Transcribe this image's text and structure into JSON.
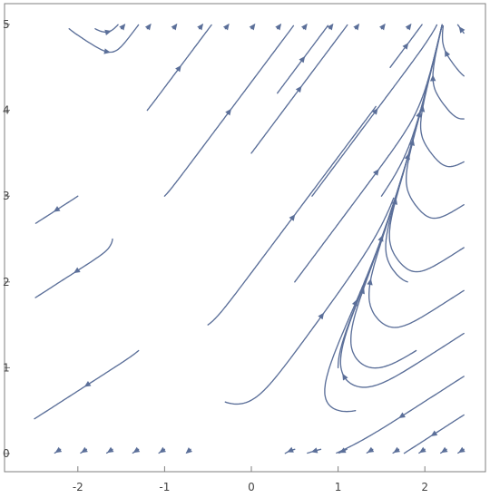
{
  "chart_data": {
    "type": "streamplot",
    "title": "",
    "xlabel": "",
    "ylabel": "",
    "xlim": [
      -2.5,
      2.5
    ],
    "ylim": [
      0,
      5
    ],
    "x_ticks": [
      "-2",
      "-1",
      "0",
      "1",
      "2"
    ],
    "y_ticks": [
      "0",
      "1",
      "2",
      "3",
      "4",
      "5"
    ],
    "x_tick_values": [
      -2,
      -1,
      0,
      1,
      2
    ],
    "y_tick_values": [
      0,
      1,
      2,
      3,
      4,
      5
    ],
    "grid": false,
    "legend": "none",
    "stream_color": "#5b6f99",
    "vector_field": {
      "dx": "tanh(2*(y - x^2))",
      "dy": "tanh(2*(y - (x - 0.5)^2 - 0.3))"
    },
    "seeds": [
      [
        -2.45,
        0.05
      ],
      [
        -2.45,
        0.45
      ],
      [
        -2.45,
        0.9
      ],
      [
        -2.45,
        1.35
      ],
      [
        -2.45,
        1.8
      ],
      [
        -2.45,
        2.3
      ],
      [
        -2.45,
        2.8
      ],
      [
        -2.45,
        3.3
      ],
      [
        -2.45,
        3.8
      ],
      [
        -2.45,
        4.3
      ],
      [
        -2.45,
        4.85
      ],
      [
        -2.1,
        4.95
      ],
      [
        -1.8,
        4.95
      ],
      [
        -1.5,
        4.95
      ],
      [
        -1.2,
        4.95
      ],
      [
        -0.9,
        4.95
      ],
      [
        -0.6,
        4.95
      ],
      [
        -0.3,
        4.95
      ],
      [
        0.0,
        4.95
      ],
      [
        0.3,
        4.95
      ],
      [
        0.6,
        4.95
      ],
      [
        0.9,
        4.95
      ],
      [
        1.2,
        4.95
      ],
      [
        1.5,
        4.95
      ],
      [
        1.8,
        4.95
      ],
      [
        2.1,
        4.95
      ],
      [
        2.45,
        4.9
      ],
      [
        2.45,
        4.4
      ],
      [
        2.45,
        3.9
      ],
      [
        2.45,
        3.4
      ],
      [
        2.45,
        2.9
      ],
      [
        2.45,
        2.4
      ],
      [
        2.45,
        1.9
      ],
      [
        2.45,
        1.4
      ],
      [
        2.45,
        0.9
      ],
      [
        2.45,
        0.45
      ],
      [
        2.45,
        0.05
      ],
      [
        -2.2,
        0.05
      ],
      [
        -1.9,
        0.05
      ],
      [
        -1.6,
        0.05
      ],
      [
        -1.3,
        0.05
      ],
      [
        -1.0,
        0.05
      ],
      [
        -0.7,
        0.05
      ],
      [
        -0.4,
        0.05
      ],
      [
        -0.1,
        0.05
      ],
      [
        0.2,
        0.05
      ],
      [
        0.5,
        0.05
      ],
      [
        0.8,
        0.05
      ],
      [
        1.1,
        0.05
      ],
      [
        1.4,
        0.05
      ],
      [
        1.7,
        0.05
      ],
      [
        2.0,
        0.05
      ],
      [
        2.25,
        0.05
      ],
      [
        -1.6,
        2.5
      ],
      [
        -1.3,
        1.2
      ],
      [
        -1.0,
        3.0
      ],
      [
        -0.5,
        1.5
      ],
      [
        0.0,
        3.5
      ],
      [
        0.5,
        2.0
      ],
      [
        1.0,
        1.0
      ],
      [
        1.5,
        3.0
      ],
      [
        1.2,
        0.5
      ],
      [
        -0.3,
        0.6
      ],
      [
        1.8,
        2.0
      ],
      [
        -2.0,
        3.0
      ],
      [
        0.3,
        4.2
      ],
      [
        1.6,
        4.5
      ],
      [
        -1.2,
        4.0
      ],
      [
        0.7,
        3.0
      ],
      [
        1.9,
        1.2
      ]
    ]
  }
}
